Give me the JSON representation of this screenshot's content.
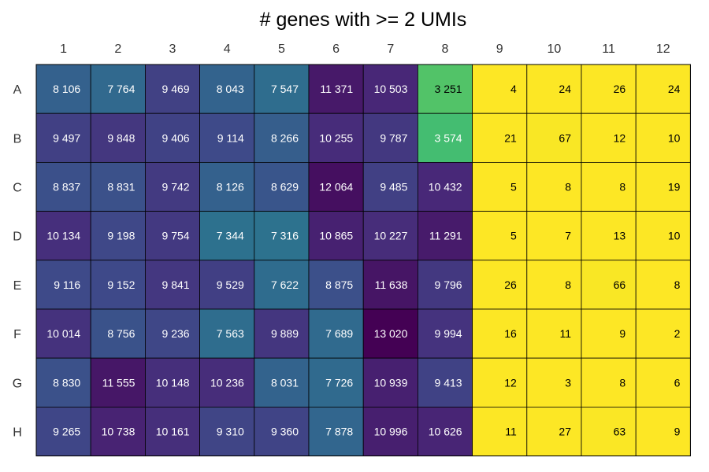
{
  "chart_data": {
    "type": "heatmap",
    "title": "# genes with >= 2 UMIs",
    "xlabel": "",
    "ylabel": "",
    "columns": [
      "1",
      "2",
      "3",
      "4",
      "5",
      "6",
      "7",
      "8",
      "9",
      "10",
      "11",
      "12"
    ],
    "rows": [
      "A",
      "B",
      "C",
      "D",
      "E",
      "F",
      "G",
      "H"
    ],
    "values": [
      [
        8106,
        7764,
        9469,
        8043,
        7547,
        11371,
        10503,
        3251,
        4,
        24,
        26,
        24
      ],
      [
        9497,
        9848,
        9406,
        9114,
        8266,
        10255,
        9787,
        3574,
        21,
        67,
        12,
        10
      ],
      [
        8837,
        8831,
        9742,
        8126,
        8629,
        12064,
        9485,
        10432,
        5,
        8,
        8,
        19
      ],
      [
        10134,
        9198,
        9754,
        7344,
        7316,
        10865,
        10227,
        11291,
        5,
        7,
        13,
        10
      ],
      [
        9116,
        9152,
        9841,
        9529,
        7622,
        8875,
        11638,
        9796,
        26,
        8,
        66,
        8
      ],
      [
        10014,
        8756,
        9236,
        7563,
        9889,
        7689,
        13020,
        9994,
        16,
        11,
        9,
        2
      ],
      [
        8830,
        11555,
        10148,
        10236,
        8031,
        7726,
        10939,
        9413,
        12,
        3,
        8,
        6
      ],
      [
        9265,
        10738,
        10161,
        9310,
        9360,
        7878,
        10996,
        10626,
        11,
        27,
        63,
        9
      ]
    ],
    "labels": [
      [
        "8 106",
        "7 764",
        "9 469",
        "8 043",
        "7 547",
        "11 371",
        "10 503",
        "3 251",
        "4",
        "24",
        "26",
        "24"
      ],
      [
        "9 497",
        "9 848",
        "9 406",
        "9 114",
        "8 266",
        "10 255",
        "9 787",
        "3 574",
        "21",
        "67",
        "12",
        "10"
      ],
      [
        "8 837",
        "8 831",
        "9 742",
        "8 126",
        "8 629",
        "12 064",
        "9 485",
        "10 432",
        "5",
        "8",
        "8",
        "19"
      ],
      [
        "10 134",
        "9 198",
        "9 754",
        "7 344",
        "7 316",
        "10 865",
        "10 227",
        "11 291",
        "5",
        "7",
        "13",
        "10"
      ],
      [
        "9 116",
        "9 152",
        "9 841",
        "9 529",
        "7 622",
        "8 875",
        "11 638",
        "9 796",
        "26",
        "8",
        "66",
        "8"
      ],
      [
        "10 014",
        "8 756",
        "9 236",
        "7 563",
        "9 889",
        "7 689",
        "13 020",
        "9 994",
        "16",
        "11",
        "9",
        "2"
      ],
      [
        "8 830",
        "11 555",
        "10 148",
        "10 236",
        "8 031",
        "7 726",
        "10 939",
        "9 413",
        "12",
        "3",
        "8",
        "6"
      ],
      [
        "9 265",
        "10 738",
        "10 161",
        "9 310",
        "9 360",
        "7 878",
        "10 996",
        "10 626",
        "11",
        "27",
        "63",
        "9"
      ]
    ],
    "colormap": "viridis-reversed",
    "color_range": [
      0,
      13020
    ],
    "colors": {
      "low": "#fde725",
      "high": "#440154",
      "cell_border": "#000000",
      "dark_text": "#000000",
      "light_text": "#ffffff"
    },
    "grid": true,
    "legend": "none"
  }
}
